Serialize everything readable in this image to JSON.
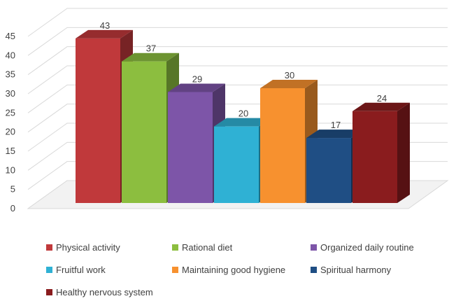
{
  "chart_data": {
    "type": "bar",
    "title": "",
    "xlabel": "",
    "ylabel": "",
    "ylim": [
      0,
      45
    ],
    "yticks": [
      0,
      5,
      10,
      15,
      20,
      25,
      30,
      35,
      40,
      45
    ],
    "grid": true,
    "legend_position": "bottom",
    "categories": [
      "Physical activity",
      "Rational diet",
      "Organized daily routine",
      "Fruitful work",
      "Maintaining good hygiene",
      "Spiritual harmony",
      "Healthy nervous system"
    ],
    "values": [
      43,
      37,
      29,
      20,
      30,
      17,
      24
    ],
    "colors": [
      "#c0393b",
      "#8cbe3f",
      "#7d55a8",
      "#2fb1d4",
      "#f7912f",
      "#1f4e84",
      "#8a1c1e"
    ]
  }
}
